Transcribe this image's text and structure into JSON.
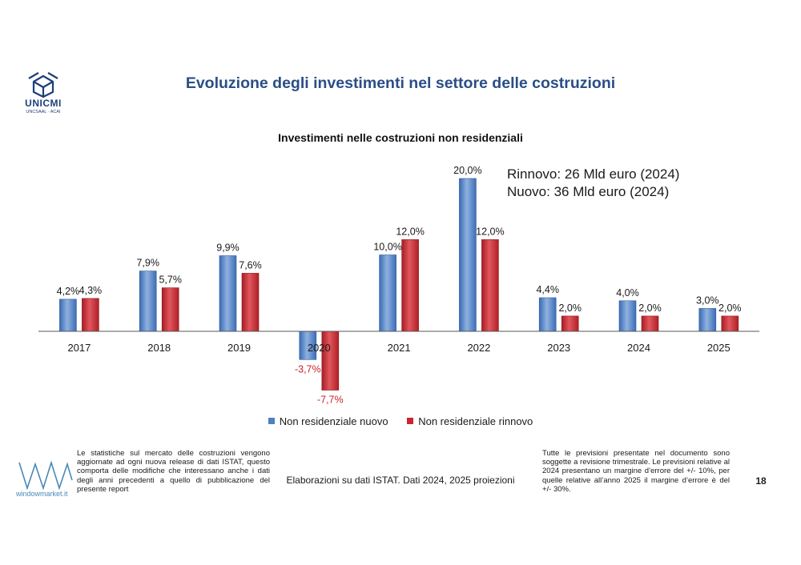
{
  "header": {
    "title": "Evoluzione degli investimenti nel settore delle costruzioni",
    "logo_text": "UNICMI",
    "logo_subtext": "UNCSAAL · ACAI"
  },
  "annotation": {
    "line1": "Rinnovo: 26 Mld euro (2024)",
    "line2": "Nuovo: 36 Mld euro (2024)"
  },
  "chart_data": {
    "type": "bar",
    "title": "Investimenti nelle costruzioni non residenziali",
    "categories": [
      "2017",
      "2018",
      "2019",
      "2020",
      "2021",
      "2022",
      "2023",
      "2024",
      "2025"
    ],
    "series": [
      {
        "name": "Non residenziale nuovo",
        "color": "#4f7fc4",
        "values": [
          4.2,
          7.9,
          9.9,
          -3.7,
          10.0,
          20.0,
          4.4,
          4.0,
          3.0
        ],
        "labels": [
          "4,2%",
          "7,9%",
          "9,9%",
          "-3,7%",
          "10,0%",
          "20,0%",
          "4,4%",
          "4,0%",
          "3,0%"
        ]
      },
      {
        "name": "Non residenziale rinnovo",
        "color": "#c9262e",
        "values": [
          4.3,
          5.7,
          7.6,
          -7.7,
          12.0,
          12.0,
          2.0,
          2.0,
          2.0
        ],
        "labels": [
          "4,3%",
          "5,7%",
          "7,6%",
          "-7,7%",
          "12,0%",
          "12,0%",
          "2,0%",
          "2,0%",
          "2,0%"
        ]
      }
    ],
    "negative_label_color": "#c9262e",
    "legend_position": "bottom",
    "grid": false
  },
  "footer": {
    "note_left": "Le statistiche sul mercato delle costruzioni vengono aggiornate ad ogni nuova release di dati ISTAT, questo comporta delle modifiche che interessano anche i dati degli anni precedenti a quello di pubblicazione del presente report",
    "brand_text": "windowmarket.it",
    "source": "Elaborazioni su dati ISTAT. Dati 2024, 2025 proiezioni",
    "note_right": "Tutte le previsioni presentate nel documento sono soggette a revisione trimestrale. Le previsioni relative al 2024 presentano un margine d’errore del +/- 10%, per quelle relative all’anno 2025 il margine d’errore è del +/- 30%.",
    "page_number": "18"
  }
}
